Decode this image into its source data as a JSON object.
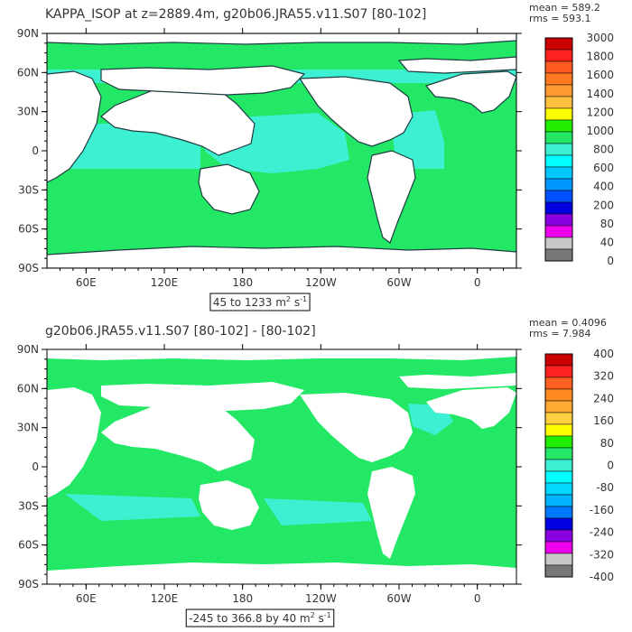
{
  "panels": [
    {
      "title": "KAPPA_ISOP at z=2889.4m, g20b06.JRA55.v11.S07 [80-102]",
      "mean_text": "mean = 589.2",
      "rms_text": "rms = 593.1",
      "range_parts": [
        "45 to 1233 m",
        "2",
        " s",
        "-1"
      ]
    },
    {
      "title": "g20b06.JRA55.v11.S07 [80-102] -  [80-102]",
      "mean_text": "mean = 0.4096",
      "rms_text": "rms = 7.984",
      "range_parts": [
        "-245 to 366.8 by 40 m",
        "2",
        " s",
        "-1"
      ]
    }
  ],
  "colors": {
    "land": "#ffffff",
    "ocean_green": "#22e866",
    "ocean_cyan": "#3cf0d2",
    "coast": "#1f3c40"
  },
  "chart_data": [
    {
      "type": "heatmap",
      "title": "KAPPA_ISOP at z=2889.4m, g20b06.JRA55.v11.S07 [80-102]",
      "x_ticks": [
        "60E",
        "120E",
        "180",
        "120W",
        "60W",
        "0"
      ],
      "y_ticks": [
        "90N",
        "60N",
        "30N",
        "0",
        "30S",
        "60S",
        "90S"
      ],
      "colorbar_levels": [
        "3000",
        "1800",
        "1600",
        "1400",
        "1200",
        "1000",
        "800",
        "600",
        "400",
        "200",
        "80",
        "40",
        "0"
      ],
      "colorbar_colors": [
        "#cc0000",
        "#ff2020",
        "#ff5a1f",
        "#ff7a20",
        "#ff9a30",
        "#ffc040",
        "#ffff00",
        "#22ee00",
        "#22e866",
        "#3cf0d2",
        "#00ffff",
        "#00c8ff",
        "#0096ff",
        "#0050ff",
        "#0000e0",
        "#8a00e0",
        "#ee00ee",
        "#c8c8c8",
        "#777777"
      ],
      "stats": {
        "mean": 589.2,
        "rms": 593.1,
        "min": 45,
        "max": 1233
      },
      "units": "m2 s-1"
    },
    {
      "type": "heatmap",
      "title": "g20b06.JRA55.v11.S07 [80-102] -  [80-102]",
      "x_ticks": [
        "60E",
        "120E",
        "180",
        "120W",
        "60W",
        "0"
      ],
      "y_ticks": [
        "90N",
        "60N",
        "30N",
        "0",
        "30S",
        "60S",
        "90S"
      ],
      "colorbar_levels": [
        "400",
        "320",
        "240",
        "160",
        "80",
        "0",
        "-80",
        "-160",
        "-240",
        "-320",
        "-400"
      ],
      "colorbar_colors": [
        "#cc0000",
        "#ff2020",
        "#ff6020",
        "#ff8a20",
        "#ffaa30",
        "#ffd040",
        "#ffff00",
        "#22ee00",
        "#22e866",
        "#3cf0d2",
        "#00ffff",
        "#00d8ff",
        "#00b4ff",
        "#0078ff",
        "#0000e0",
        "#8a00e0",
        "#ee00ee",
        "#c8c8c8",
        "#777777"
      ],
      "stats": {
        "mean": 0.4096,
        "rms": 7.984,
        "min": -245,
        "max": 366.8,
        "interval": 40
      },
      "units": "m2 s-1"
    }
  ]
}
